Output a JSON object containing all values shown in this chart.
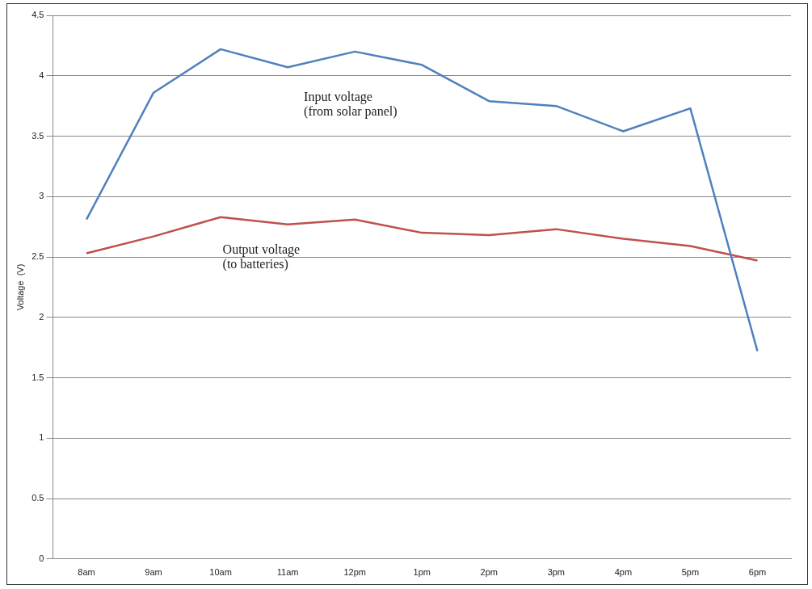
{
  "chart_data": {
    "type": "line",
    "ylabel": "Voltage  (V)",
    "categories": [
      "8am",
      "9am",
      "10am",
      "11am",
      "12pm",
      "1pm",
      "2pm",
      "3pm",
      "4pm",
      "5pm",
      "6pm"
    ],
    "series": [
      {
        "name": "Input voltage (from solar panel)",
        "color": "#4f81bd",
        "values": [
          2.81,
          3.86,
          4.22,
          4.07,
          4.2,
          4.09,
          3.79,
          3.75,
          3.54,
          3.73,
          1.72
        ]
      },
      {
        "name": "Output voltage (to batteries)",
        "color": "#c0504d",
        "values": [
          2.53,
          2.67,
          2.83,
          2.77,
          2.81,
          2.7,
          2.68,
          2.73,
          2.65,
          2.59,
          2.47
        ]
      }
    ],
    "ylim": [
      0,
      4.5
    ],
    "yticks": [
      0,
      0.5,
      1,
      1.5,
      2,
      2.5,
      3,
      3.5,
      4,
      4.5
    ],
    "grid": "y",
    "legend": false,
    "marker": "none",
    "line_style": "solid"
  }
}
